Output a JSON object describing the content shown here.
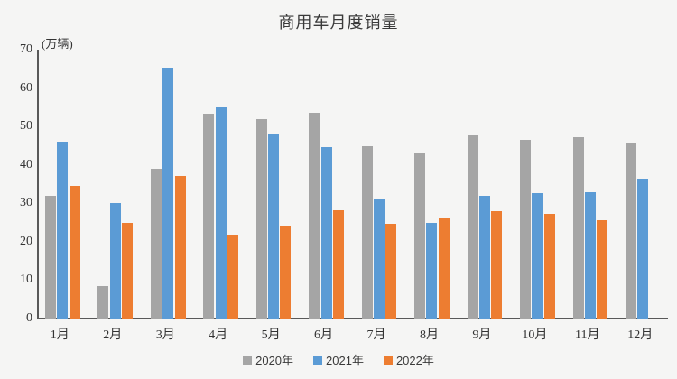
{
  "chart_data": {
    "type": "bar",
    "title": "商用车月度销量",
    "unit": "(万辆)",
    "categories": [
      "1月",
      "2月",
      "3月",
      "4月",
      "5月",
      "6月",
      "7月",
      "8月",
      "9月",
      "10月",
      "11月",
      "12月"
    ],
    "series": [
      {
        "name": "2020年",
        "color": "#A5A5A5",
        "values": [
          32,
          8.5,
          39,
          53.4,
          52,
          53.5,
          44.9,
          43.2,
          47.8,
          46.5,
          47.3,
          45.7
        ]
      },
      {
        "name": "2021年",
        "color": "#5B9BD5",
        "values": [
          46,
          30,
          65.3,
          55,
          48.2,
          44.6,
          31.3,
          24.8,
          31.9,
          32.6,
          33,
          36.4
        ]
      },
      {
        "name": "2022年",
        "color": "#ED7D31",
        "values": [
          34.5,
          25,
          37,
          21.8,
          24,
          28.2,
          24.6,
          26,
          28,
          27.3,
          25.5,
          null
        ]
      }
    ],
    "y_ticks": [
      0,
      10,
      20,
      30,
      40,
      50,
      60,
      70
    ],
    "ylim": [
      0,
      70
    ],
    "grid": false,
    "legend_position": "bottom",
    "axis_color": "#595959",
    "background_color": "#f5f5f4",
    "text_color": "#333333"
  }
}
